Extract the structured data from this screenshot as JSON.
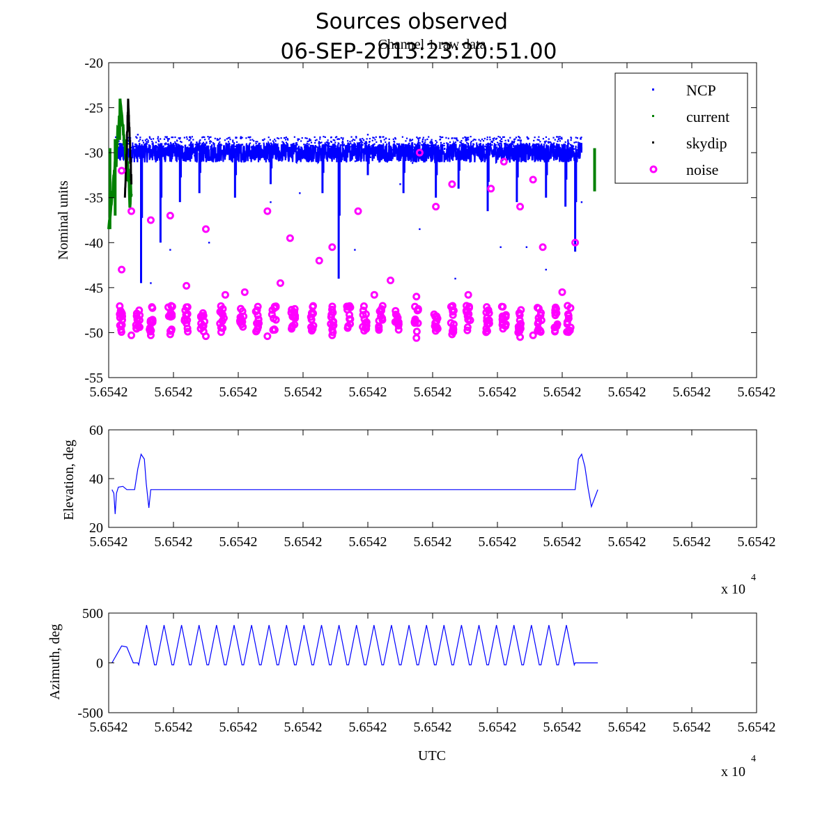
{
  "figure": {
    "title_line1": "Sources observed",
    "title_line2": "06-SEP-2013:23:20:51.00"
  },
  "chart_data": [
    {
      "type": "scatter",
      "title": "Channel 1 raw data",
      "xlabel": "",
      "ylabel": "Nominal units",
      "xlim": [
        0,
        10
      ],
      "ylim": [
        -55,
        -20
      ],
      "yticks": [
        "-20",
        "-25",
        "-30",
        "-35",
        "-40",
        "-45",
        "-50",
        "-55"
      ],
      "xtick_labels": [
        "5.6542",
        "5.6542",
        "5.6542",
        "5.6542",
        "5.6542",
        "5.6542",
        "5.6542",
        "5.6542",
        "5.6542",
        "5.6542",
        "5.6542"
      ],
      "legend": {
        "position": "top-right",
        "entries": [
          {
            "label": "NCP",
            "color": "#0000ff",
            "marker": "dot"
          },
          {
            "label": "current",
            "color": "#008000",
            "marker": "dot"
          },
          {
            "label": "skydip",
            "color": "#000000",
            "marker": "dot"
          },
          {
            "label": "noise",
            "color": "#ff00ff",
            "marker": "circle"
          }
        ]
      },
      "series": [
        {
          "name": "NCP",
          "color": "#0000ff",
          "baseline": -30,
          "x_range": [
            0.1,
            7.3
          ],
          "dips": [
            [
              0.5,
              -44.5
            ],
            [
              0.8,
              -40
            ],
            [
              1.1,
              -35.5
            ],
            [
              1.4,
              -34.5
            ],
            [
              1.95,
              -35
            ],
            [
              2.5,
              -33.5
            ],
            [
              3.3,
              -34.5
            ],
            [
              3.55,
              -44
            ],
            [
              4.0,
              -32.5
            ],
            [
              4.55,
              -34.5
            ],
            [
              5.05,
              -35
            ],
            [
              5.4,
              -34
            ],
            [
              5.85,
              -36.5
            ],
            [
              6.3,
              -35.5
            ],
            [
              6.75,
              -35
            ],
            [
              7.05,
              -36
            ],
            [
              7.2,
              -41
            ]
          ],
          "outliers": [
            [
              0.65,
              -44.5
            ],
            [
              0.95,
              -40.8
            ],
            [
              1.55,
              -40
            ],
            [
              2.5,
              -35.5
            ],
            [
              2.95,
              -34.5
            ],
            [
              3.8,
              -40.8
            ],
            [
              3.3,
              -32.5
            ],
            [
              4.0,
              -28
            ],
            [
              4.5,
              -33.5
            ],
            [
              4.8,
              -38.5
            ],
            [
              5.35,
              -44
            ],
            [
              6.05,
              -40.5
            ],
            [
              6.45,
              -40.5
            ],
            [
              6.75,
              -43
            ],
            [
              7.3,
              -35.5
            ],
            [
              0.45,
              -28
            ],
            [
              3.1,
              -28.5
            ]
          ]
        },
        {
          "name": "current",
          "color": "#008000",
          "x_range": [
            0.0,
            0.35
          ],
          "min": -38.5,
          "max": -24
        },
        {
          "name": "skydip",
          "color": "#000000",
          "x_range": [
            0.25,
            0.35
          ],
          "min": -35,
          "max": -24
        },
        {
          "name": "noise",
          "color": "#ff00ff",
          "clusters_x": [
            0.2,
            0.45,
            0.65,
            0.95,
            1.2,
            1.45,
            1.75,
            2.05,
            2.3,
            2.55,
            2.85,
            3.15,
            3.45,
            3.7,
            3.95,
            4.2,
            4.45,
            4.75,
            5.05,
            5.3,
            5.55,
            5.85,
            6.1,
            6.35,
            6.65,
            6.9,
            7.1
          ],
          "cluster_range": [
            -47,
            -50
          ],
          "isolated": [
            [
              0.2,
              -32
            ],
            [
              0.2,
              -43
            ],
            [
              0.35,
              -36.5
            ],
            [
              0.65,
              -37.5
            ],
            [
              0.95,
              -37
            ],
            [
              1.5,
              -38.5
            ],
            [
              1.2,
              -44.8
            ],
            [
              1.8,
              -45.8
            ],
            [
              2.1,
              -45.5
            ],
            [
              2.45,
              -36.5
            ],
            [
              2.65,
              -44.5
            ],
            [
              2.8,
              -39.5
            ],
            [
              3.25,
              -42
            ],
            [
              3.45,
              -40.5
            ],
            [
              3.85,
              -36.5
            ],
            [
              4.1,
              -45.8
            ],
            [
              4.35,
              -44.2
            ],
            [
              4.75,
              -46
            ],
            [
              4.8,
              -30
            ],
            [
              5.05,
              -36
            ],
            [
              5.3,
              -33.5
            ],
            [
              5.55,
              -45.8
            ],
            [
              5.9,
              -34
            ],
            [
              6.1,
              -31
            ],
            [
              6.35,
              -36
            ],
            [
              6.55,
              -33
            ],
            [
              6.7,
              -40.5
            ],
            [
              7.0,
              -45.5
            ],
            [
              7.2,
              -40
            ],
            [
              0.35,
              -50.3
            ],
            [
              0.65,
              -50.3
            ],
            [
              0.95,
              -50.2
            ],
            [
              1.5,
              -50.4
            ],
            [
              2.45,
              -50.4
            ],
            [
              3.45,
              -50.3
            ],
            [
              4.75,
              -50.6
            ],
            [
              5.3,
              -50.2
            ],
            [
              6.35,
              -50.5
            ],
            [
              6.55,
              -50.3
            ]
          ]
        }
      ]
    },
    {
      "type": "line",
      "title": "",
      "xlabel": "",
      "ylabel": "Elevation, deg",
      "xlim": [
        0,
        10
      ],
      "ylim": [
        20,
        60
      ],
      "yticks": [
        "20",
        "40",
        "60"
      ],
      "xtick_labels": [
        "5.6542",
        "5.6542",
        "5.6542",
        "5.6542",
        "5.6542",
        "5.6542",
        "5.6542",
        "5.6542",
        "5.6542",
        "5.6542",
        "5.6542"
      ],
      "x_exponent_label": "x 10",
      "x_exponent_power": "4",
      "series": [
        {
          "name": "elevation",
          "color": "#0000ff",
          "points": [
            [
              0.05,
              35.5
            ],
            [
              0.08,
              34
            ],
            [
              0.1,
              25.5
            ],
            [
              0.12,
              34
            ],
            [
              0.15,
              36.5
            ],
            [
              0.22,
              36.8
            ],
            [
              0.28,
              35.5
            ],
            [
              0.35,
              35.5
            ],
            [
              0.4,
              35.5
            ],
            [
              0.45,
              44
            ],
            [
              0.5,
              50
            ],
            [
              0.55,
              48
            ],
            [
              0.58,
              38
            ],
            [
              0.6,
              33
            ],
            [
              0.62,
              28
            ],
            [
              0.65,
              35.5
            ],
            [
              7.15,
              35.5
            ],
            [
              7.2,
              35.5
            ],
            [
              7.25,
              48
            ],
            [
              7.3,
              50
            ],
            [
              7.35,
              45
            ],
            [
              7.4,
              36
            ],
            [
              7.45,
              28.5
            ],
            [
              7.5,
              32
            ],
            [
              7.55,
              35.5
            ]
          ]
        }
      ]
    },
    {
      "type": "line",
      "title": "",
      "xlabel": "UTC",
      "ylabel": "Azimuth, deg",
      "xlim": [
        0,
        10
      ],
      "ylim": [
        -500,
        500
      ],
      "yticks": [
        "-500",
        "0",
        "500"
      ],
      "xtick_labels": [
        "5.6542",
        "5.6542",
        "5.6542",
        "5.6542",
        "5.6542",
        "5.6542",
        "5.6542",
        "5.6542",
        "5.6542",
        "5.6542",
        "5.6542"
      ],
      "x_exponent_label": "x 10",
      "x_exponent_power": "4",
      "series": [
        {
          "name": "azimuth",
          "color": "#0000ff",
          "start_x": 0.05,
          "end_x": 7.55,
          "scan_start_x": 0.45,
          "scan_end_x": 7.2,
          "scan_count": 25,
          "scan_max": 380,
          "scan_min": -20,
          "initial_bump": [
            [
              0.05,
              0
            ],
            [
              0.2,
              170
            ],
            [
              0.28,
              160
            ],
            [
              0.38,
              0
            ],
            [
              0.45,
              0
            ]
          ]
        }
      ]
    }
  ]
}
